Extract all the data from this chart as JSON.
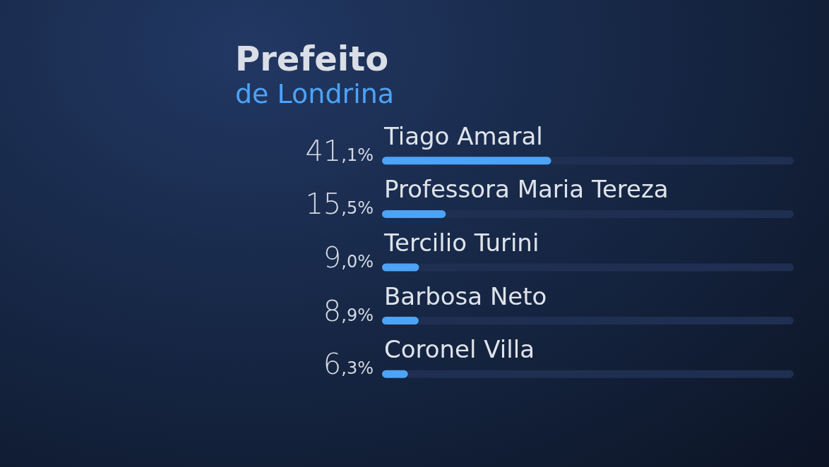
{
  "chart_data": {
    "type": "bar",
    "orientation": "horizontal",
    "stacked": true,
    "title": "Prefeito",
    "subtitle": "de Londrina",
    "categories": [
      "Tiago Amaral",
      "Professora Maria Tereza",
      "Tercilio Turini",
      "Barbosa Neto",
      "Coronel Villa"
    ],
    "series": [
      {
        "color": "#4da3f7",
        "values": [
          41.1,
          15.5,
          9.0,
          8.9,
          6.3
        ],
        "value_labels": [
          "41,1%",
          "15,5%",
          "9,0%",
          "8,9%",
          "6,3%"
        ]
      },
      {
        "color": "#1f2f52",
        "values": [
          58.9,
          84.5,
          91.0,
          91.1,
          93.7
        ]
      }
    ],
    "xlim": [
      0,
      100
    ],
    "tick_labels": "y"
  }
}
